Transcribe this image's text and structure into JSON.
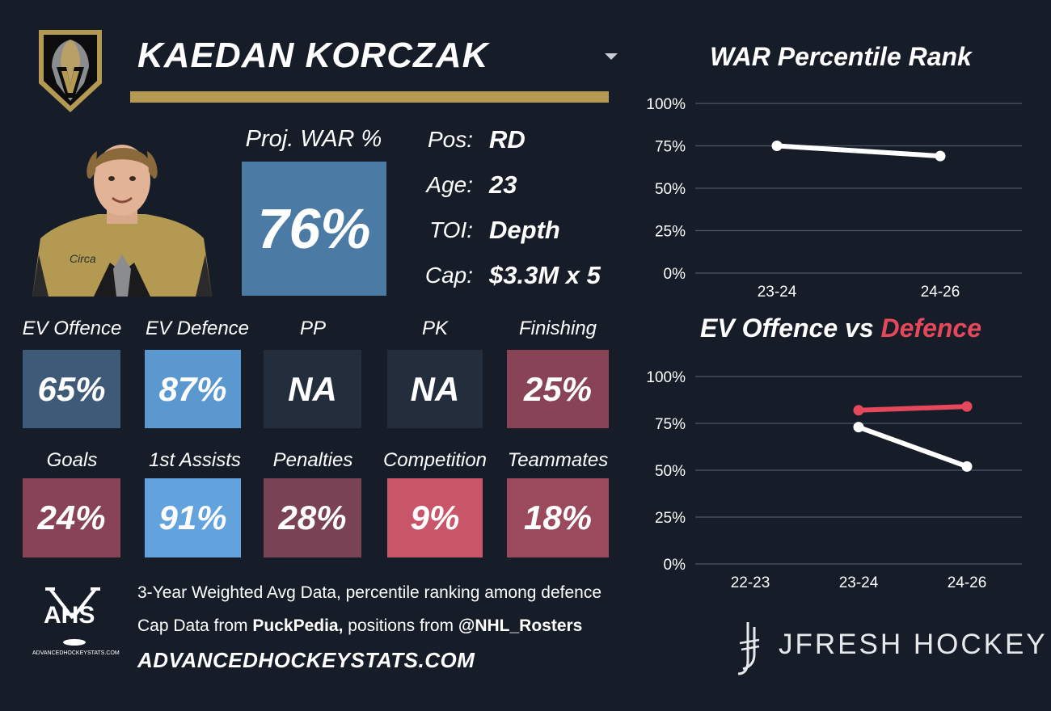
{
  "player": {
    "name": "KAEDAN KORCZAK",
    "team_logo": "vegas-golden-knights-logo",
    "proj_war_label": "Proj. WAR %",
    "proj_war_value": "76%",
    "info": [
      {
        "label": "Pos:",
        "value": "RD"
      },
      {
        "label": "Age:",
        "value": "23"
      },
      {
        "label": "TOI:",
        "value": "Depth"
      },
      {
        "label": "Cap:",
        "value": "$3.3M x 5"
      }
    ]
  },
  "tiles": [
    {
      "label": "EV Offence",
      "value": "65%",
      "color": "#3e5a78"
    },
    {
      "label": "EV Defence",
      "value": "87%",
      "color": "#5a98cf"
    },
    {
      "label": "PP",
      "value": "NA",
      "color": "#232d3b"
    },
    {
      "label": "PK",
      "value": "NA",
      "color": "#232d3b"
    },
    {
      "label": "Finishing",
      "value": "25%",
      "color": "#884456"
    },
    {
      "label": "Goals",
      "value": "24%",
      "color": "#884456"
    },
    {
      "label": "1st Assists",
      "value": "91%",
      "color": "#62a3de"
    },
    {
      "label": "Penalties",
      "value": "28%",
      "color": "#7a4255"
    },
    {
      "label": "Competition",
      "value": "9%",
      "color": "#c95668"
    },
    {
      "label": "Teammates",
      "value": "18%",
      "color": "#9b4a5e"
    }
  ],
  "footer": {
    "line1": "3-Year Weighted Avg Data, percentile ranking among defence",
    "line2_prefix": "Cap Data from ",
    "line2_source": "PuckPedia,",
    "line2_middle": " positions from ",
    "line2_handle": "@NHL_Rosters",
    "site": "ADVANCEDHOCKEYSTATS.COM",
    "ahs_logo_text": "AHS",
    "ahs_logo_sub": "ADVANCEDHOCKEYSTATS.COM",
    "brand": "JFRESH HOCKEY"
  },
  "colors": {
    "background": "#171d28",
    "gold": "#b49952",
    "defence_line": "#e5485b",
    "offence_line": "#ffffff",
    "grid": "#4a5566"
  },
  "chart_data": [
    {
      "type": "line",
      "title": "WAR Percentile Rank",
      "categories": [
        "23-24",
        "24-26"
      ],
      "yticks": [
        "0%",
        "25%",
        "50%",
        "75%",
        "100%"
      ],
      "ylim": [
        0,
        100
      ],
      "grid": true,
      "series": [
        {
          "values": [
            75,
            69
          ]
        }
      ]
    },
    {
      "type": "line",
      "title_part1": "EV Offence vs ",
      "title_part2": "Defence",
      "categories": [
        "22-23",
        "23-24",
        "24-26"
      ],
      "yticks": [
        "0%",
        "25%",
        "50%",
        "75%",
        "100%"
      ],
      "ylim": [
        0,
        100
      ],
      "grid": true,
      "series": [
        {
          "values": [
            null,
            82,
            84
          ]
        },
        {
          "values": [
            null,
            73,
            52
          ]
        }
      ]
    }
  ]
}
